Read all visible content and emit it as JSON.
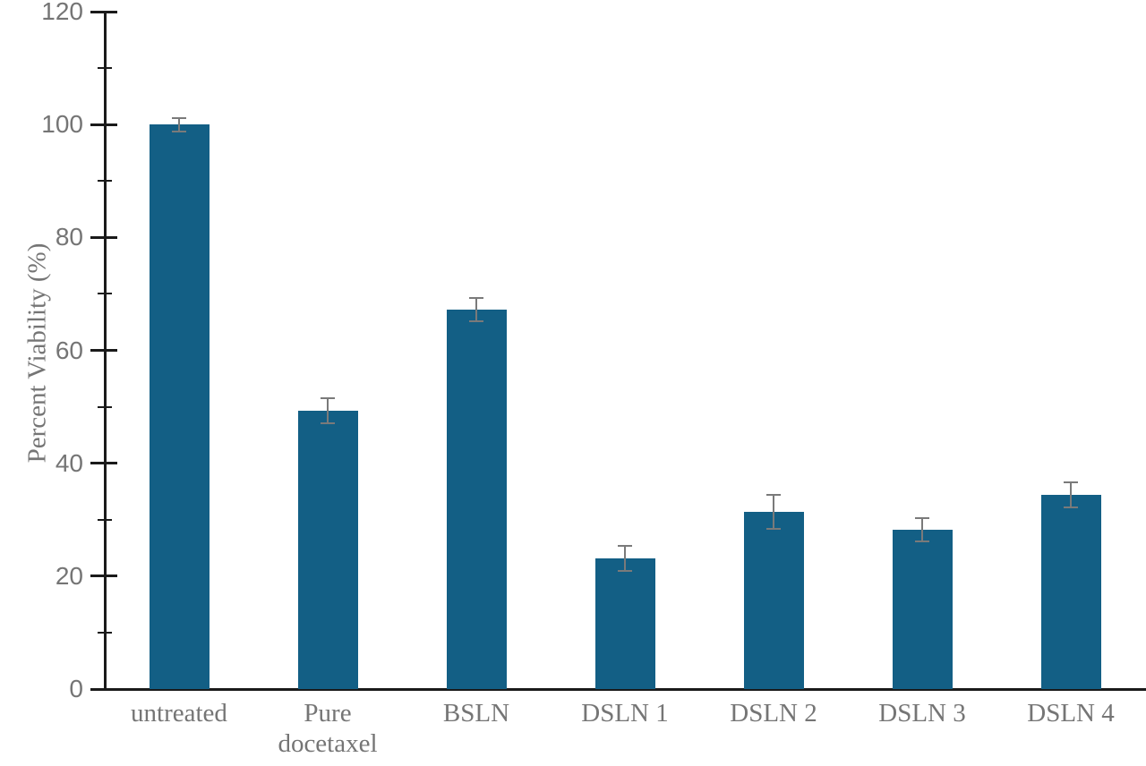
{
  "chart_data": {
    "type": "bar",
    "title": "",
    "xlabel": "",
    "ylabel": "Percent Viability (%)",
    "categories": [
      "untreated",
      "Pure docetaxel",
      "BSLN",
      "DSLN 1",
      "DSLN 2",
      "DSLN 3",
      "DSLN 4"
    ],
    "values": [
      100,
      49.3,
      67.2,
      23.2,
      31.4,
      28.2,
      34.4
    ],
    "errors": [
      1.2,
      2.2,
      2.0,
      2.2,
      3.0,
      2.0,
      2.2
    ],
    "ylim": [
      0,
      120
    ],
    "ytick_major_interval": 20,
    "ytick_minor_interval": 10,
    "ytick_labels": [
      "0",
      "20",
      "40",
      "60",
      "80",
      "100",
      "120"
    ],
    "grid": "off",
    "legend": "none",
    "colors": {
      "bar_fill": "#135f85",
      "error_bar": "#7a7a7a",
      "axis": "#1a1a1a",
      "tick_text": "#757575",
      "category_text": "#757575",
      "background": "#ffffff"
    }
  }
}
